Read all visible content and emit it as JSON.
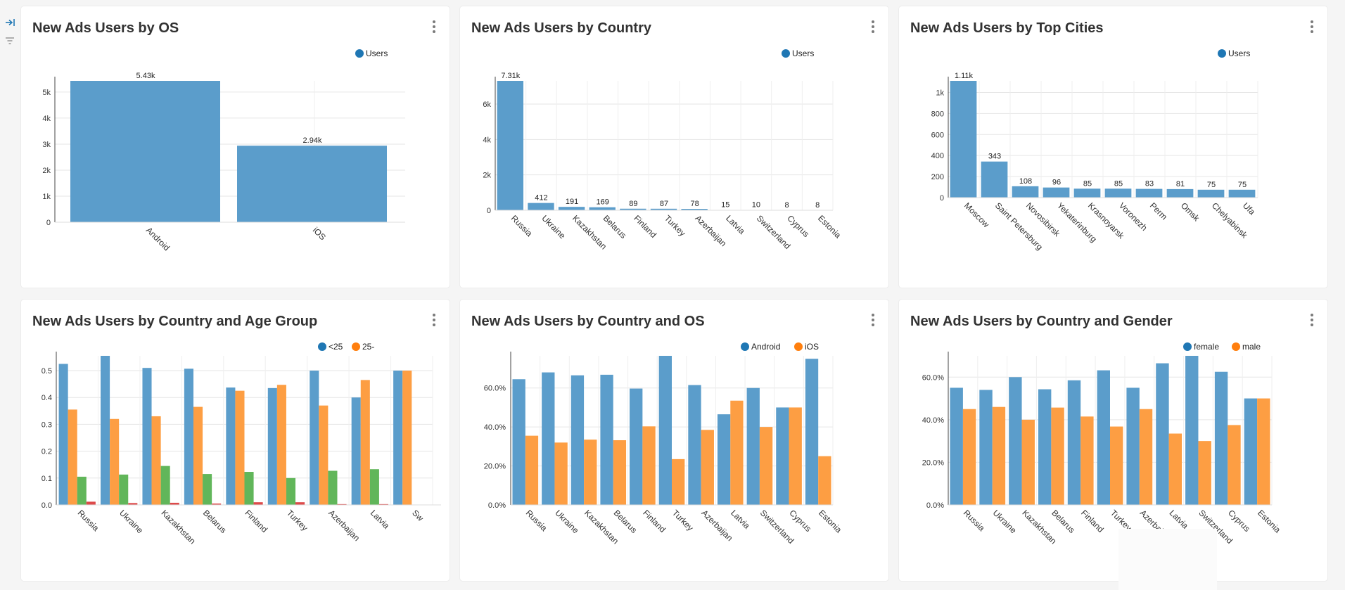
{
  "colors": {
    "blue": "#5b9dcb",
    "orange": "#fd9e43",
    "green": "#61b65a",
    "red": "#dd4a4a",
    "legend_blue": "#1f77b4",
    "legend_orange": "#ff7f0e"
  },
  "rail": {
    "icons": [
      "expand-icon",
      "filter-icon"
    ]
  },
  "chart_data": [
    {
      "id": "os",
      "type": "bar",
      "title": "New Ads Users by OS",
      "categories": [
        "Android",
        "iOS"
      ],
      "series": [
        {
          "name": "Users",
          "values": [
            5430,
            2940
          ],
          "labels": [
            "5.43k",
            "2.94k"
          ]
        }
      ],
      "ylim": [
        0,
        5430
      ],
      "yticks": [
        0,
        1000,
        2000,
        3000,
        4000,
        5000
      ],
      "ytick_labels": [
        "0",
        "1k",
        "2k",
        "3k",
        "4k",
        "5k"
      ],
      "grid": true,
      "legend": "top-right"
    },
    {
      "id": "country",
      "type": "bar",
      "title": "New Ads Users by Country",
      "categories": [
        "Russia",
        "Ukraine",
        "Kazakhstan",
        "Belarus",
        "Finland",
        "Turkey",
        "Azerbaijan",
        "Latvia",
        "Switzerland",
        "Cyprus",
        "Estonia"
      ],
      "series": [
        {
          "name": "Users",
          "values": [
            7310,
            412,
            191,
            169,
            89,
            87,
            78,
            15,
            10,
            8,
            8
          ],
          "labels": [
            "7.31k",
            "412",
            "191",
            "169",
            "89",
            "87",
            "78",
            "15",
            "10",
            "8",
            "8"
          ]
        }
      ],
      "ylim": [
        0,
        7310
      ],
      "yticks": [
        0,
        2000,
        4000,
        6000
      ],
      "ytick_labels": [
        "0",
        "2k",
        "4k",
        "6k"
      ],
      "grid": true,
      "legend": "top-right"
    },
    {
      "id": "cities",
      "type": "bar",
      "title": "New Ads Users by Top Cities",
      "categories": [
        "Moscow",
        "Saint Petersburg",
        "Novosibirsk",
        "Yekaterinburg",
        "Krasnoyarsk",
        "Voronezh",
        "Perm",
        "Omsk",
        "Chelyabinsk",
        "Ufa"
      ],
      "series": [
        {
          "name": "Users",
          "values": [
            1110,
            343,
            108,
            96,
            85,
            85,
            83,
            81,
            75,
            75
          ],
          "labels": [
            "1.11k",
            "343",
            "108",
            "96",
            "85",
            "85",
            "83",
            "81",
            "75",
            "75"
          ]
        }
      ],
      "ylim": [
        0,
        1110
      ],
      "yticks": [
        0,
        200,
        400,
        600,
        800,
        1000
      ],
      "ytick_labels": [
        "0",
        "200",
        "400",
        "600",
        "800",
        "1k"
      ],
      "grid": true,
      "legend": "top-right"
    },
    {
      "id": "age",
      "type": "bar",
      "title": "New Ads Users by Country and Age Group",
      "categories": [
        "Russia",
        "Ukraine",
        "Kazakhstan",
        "Belarus",
        "Finland",
        "Turkey",
        "Azerbaijan",
        "Latvia",
        "Sw"
      ],
      "series": [
        {
          "name": "<25",
          "values": [
            0.525,
            0.555,
            0.51,
            0.507,
            0.437,
            0.435,
            0.5,
            0.4,
            0.5
          ]
        },
        {
          "name": "25-",
          "values": [
            0.355,
            0.32,
            0.33,
            0.365,
            0.425,
            0.447,
            0.37,
            0.465,
            0.5
          ]
        },
        {
          "name": "",
          "values": [
            0.105,
            0.113,
            0.145,
            0.115,
            0.123,
            0.1,
            0.127,
            0.133,
            0.0
          ]
        },
        {
          "name": "",
          "values": [
            0.012,
            0.007,
            0.008,
            0.005,
            0.01,
            0.01,
            0.003,
            0.003,
            0.0
          ]
        }
      ],
      "ylim": [
        0,
        0.555
      ],
      "yticks": [
        0,
        0.1,
        0.2,
        0.3,
        0.4,
        0.5
      ],
      "ytick_labels": [
        "0.0",
        "0.1",
        "0.2",
        "0.3",
        "0.4",
        "0.5"
      ],
      "grid": true,
      "legend": "top-right"
    },
    {
      "id": "os_country",
      "type": "bar",
      "title": "New Ads Users by Country and OS",
      "categories": [
        "Russia",
        "Ukraine",
        "Kazakhstan",
        "Belarus",
        "Finland",
        "Turkey",
        "Azerbaijan",
        "Latvia",
        "Switzerland",
        "Cyprus",
        "Estonia"
      ],
      "series": [
        {
          "name": "Android",
          "values": [
            0.645,
            0.68,
            0.665,
            0.668,
            0.597,
            0.765,
            0.615,
            0.465,
            0.6,
            0.5,
            0.75
          ]
        },
        {
          "name": "iOS",
          "values": [
            0.355,
            0.32,
            0.335,
            0.332,
            0.403,
            0.235,
            0.385,
            0.535,
            0.4,
            0.5,
            0.25
          ]
        }
      ],
      "ylim": [
        0,
        0.765
      ],
      "yticks": [
        0,
        0.2,
        0.4,
        0.6
      ],
      "ytick_labels": [
        "0.0%",
        "20.0%",
        "40.0%",
        "60.0%"
      ],
      "grid": true,
      "legend": "top-right"
    },
    {
      "id": "gender",
      "type": "bar",
      "title": "New Ads Users by Country and Gender",
      "categories": [
        "Russia",
        "Ukraine",
        "Kazakhstan",
        "Belarus",
        "Finland",
        "Turkey",
        "Azerbaijan",
        "Latvia",
        "Switzerland",
        "Cyprus",
        "Estonia"
      ],
      "series": [
        {
          "name": "female",
          "values": [
            0.55,
            0.54,
            0.6,
            0.543,
            0.585,
            0.632,
            0.55,
            0.665,
            0.7,
            0.625,
            0.5
          ]
        },
        {
          "name": "male",
          "values": [
            0.45,
            0.46,
            0.4,
            0.457,
            0.415,
            0.368,
            0.45,
            0.335,
            0.3,
            0.375,
            0.5
          ]
        }
      ],
      "ylim": [
        0,
        0.7
      ],
      "yticks": [
        0,
        0.2,
        0.4,
        0.6
      ],
      "ytick_labels": [
        "0.0%",
        "20.0%",
        "40.0%",
        "60.0%"
      ],
      "grid": true,
      "legend": "top-right"
    }
  ]
}
